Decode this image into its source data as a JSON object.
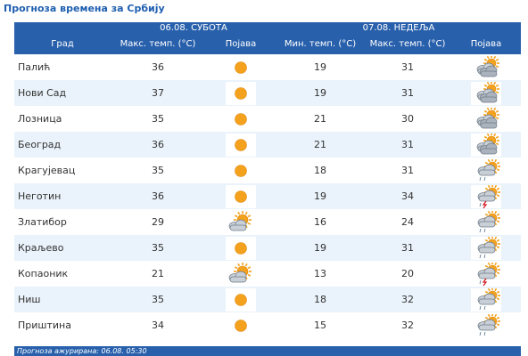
{
  "page": {
    "title": "Прогноза времена за Србију"
  },
  "table": {
    "day1_label": "06.08. СУБОТА",
    "day2_label": "07.08. НЕДЕЉА",
    "col_city": "Град",
    "col_day1_max": "Макс. темп. (°C)",
    "col_day1_icon": "Појава",
    "col_day2_min": "Мин. темп. (°C)",
    "col_day2_max": "Макс. темп. (°C)",
    "col_day2_icon": "Појава",
    "rows": [
      {
        "city": "Палић",
        "d1_max": "36",
        "d1_icon": "sunny-icon",
        "d2_min": "19",
        "d2_max": "31",
        "d2_icon": "partly-cloudy-icon"
      },
      {
        "city": "Нови Сад",
        "d1_max": "37",
        "d1_icon": "sunny-icon",
        "d2_min": "19",
        "d2_max": "31",
        "d2_icon": "partly-cloudy-icon"
      },
      {
        "city": "Лозница",
        "d1_max": "35",
        "d1_icon": "sunny-icon",
        "d2_min": "21",
        "d2_max": "30",
        "d2_icon": "partly-cloudy-icon"
      },
      {
        "city": "Београд",
        "d1_max": "36",
        "d1_icon": "sunny-icon",
        "d2_min": "21",
        "d2_max": "31",
        "d2_icon": "partly-cloudy-icon"
      },
      {
        "city": "Крагујевац",
        "d1_max": "35",
        "d1_icon": "sunny-icon",
        "d2_min": "18",
        "d2_max": "31",
        "d2_icon": "sun-cloud-showers-icon"
      },
      {
        "city": "Неготин",
        "d1_max": "36",
        "d1_icon": "sunny-icon",
        "d2_min": "19",
        "d2_max": "34",
        "d2_icon": "thunderstorm-icon"
      },
      {
        "city": "Златибор",
        "d1_max": "29",
        "d1_icon": "mostly-sunny-icon",
        "d2_min": "16",
        "d2_max": "24",
        "d2_icon": "sun-cloud-showers-icon"
      },
      {
        "city": "Краљево",
        "d1_max": "35",
        "d1_icon": "sunny-icon",
        "d2_min": "19",
        "d2_max": "31",
        "d2_icon": "sun-cloud-showers-icon"
      },
      {
        "city": "Копаоник",
        "d1_max": "21",
        "d1_icon": "mostly-sunny-icon",
        "d2_min": "13",
        "d2_max": "20",
        "d2_icon": "thunderstorm-icon"
      },
      {
        "city": "Ниш",
        "d1_max": "35",
        "d1_icon": "sunny-icon",
        "d2_min": "18",
        "d2_max": "32",
        "d2_icon": "sun-cloud-showers-icon"
      },
      {
        "city": "Приштина",
        "d1_max": "34",
        "d1_icon": "sunny-icon",
        "d2_min": "15",
        "d2_max": "32",
        "d2_icon": "sun-cloud-showers-icon"
      }
    ]
  },
  "footer": {
    "updated_text": "Прогноза ажурирана:  06.08. 05:30"
  },
  "colors": {
    "header_bg": "#2860ac",
    "title_color": "#1f5fb0",
    "row_alt_bg": "#eaf3fb",
    "sun": "#f4a21e",
    "cloud": "#c9cfd6"
  }
}
